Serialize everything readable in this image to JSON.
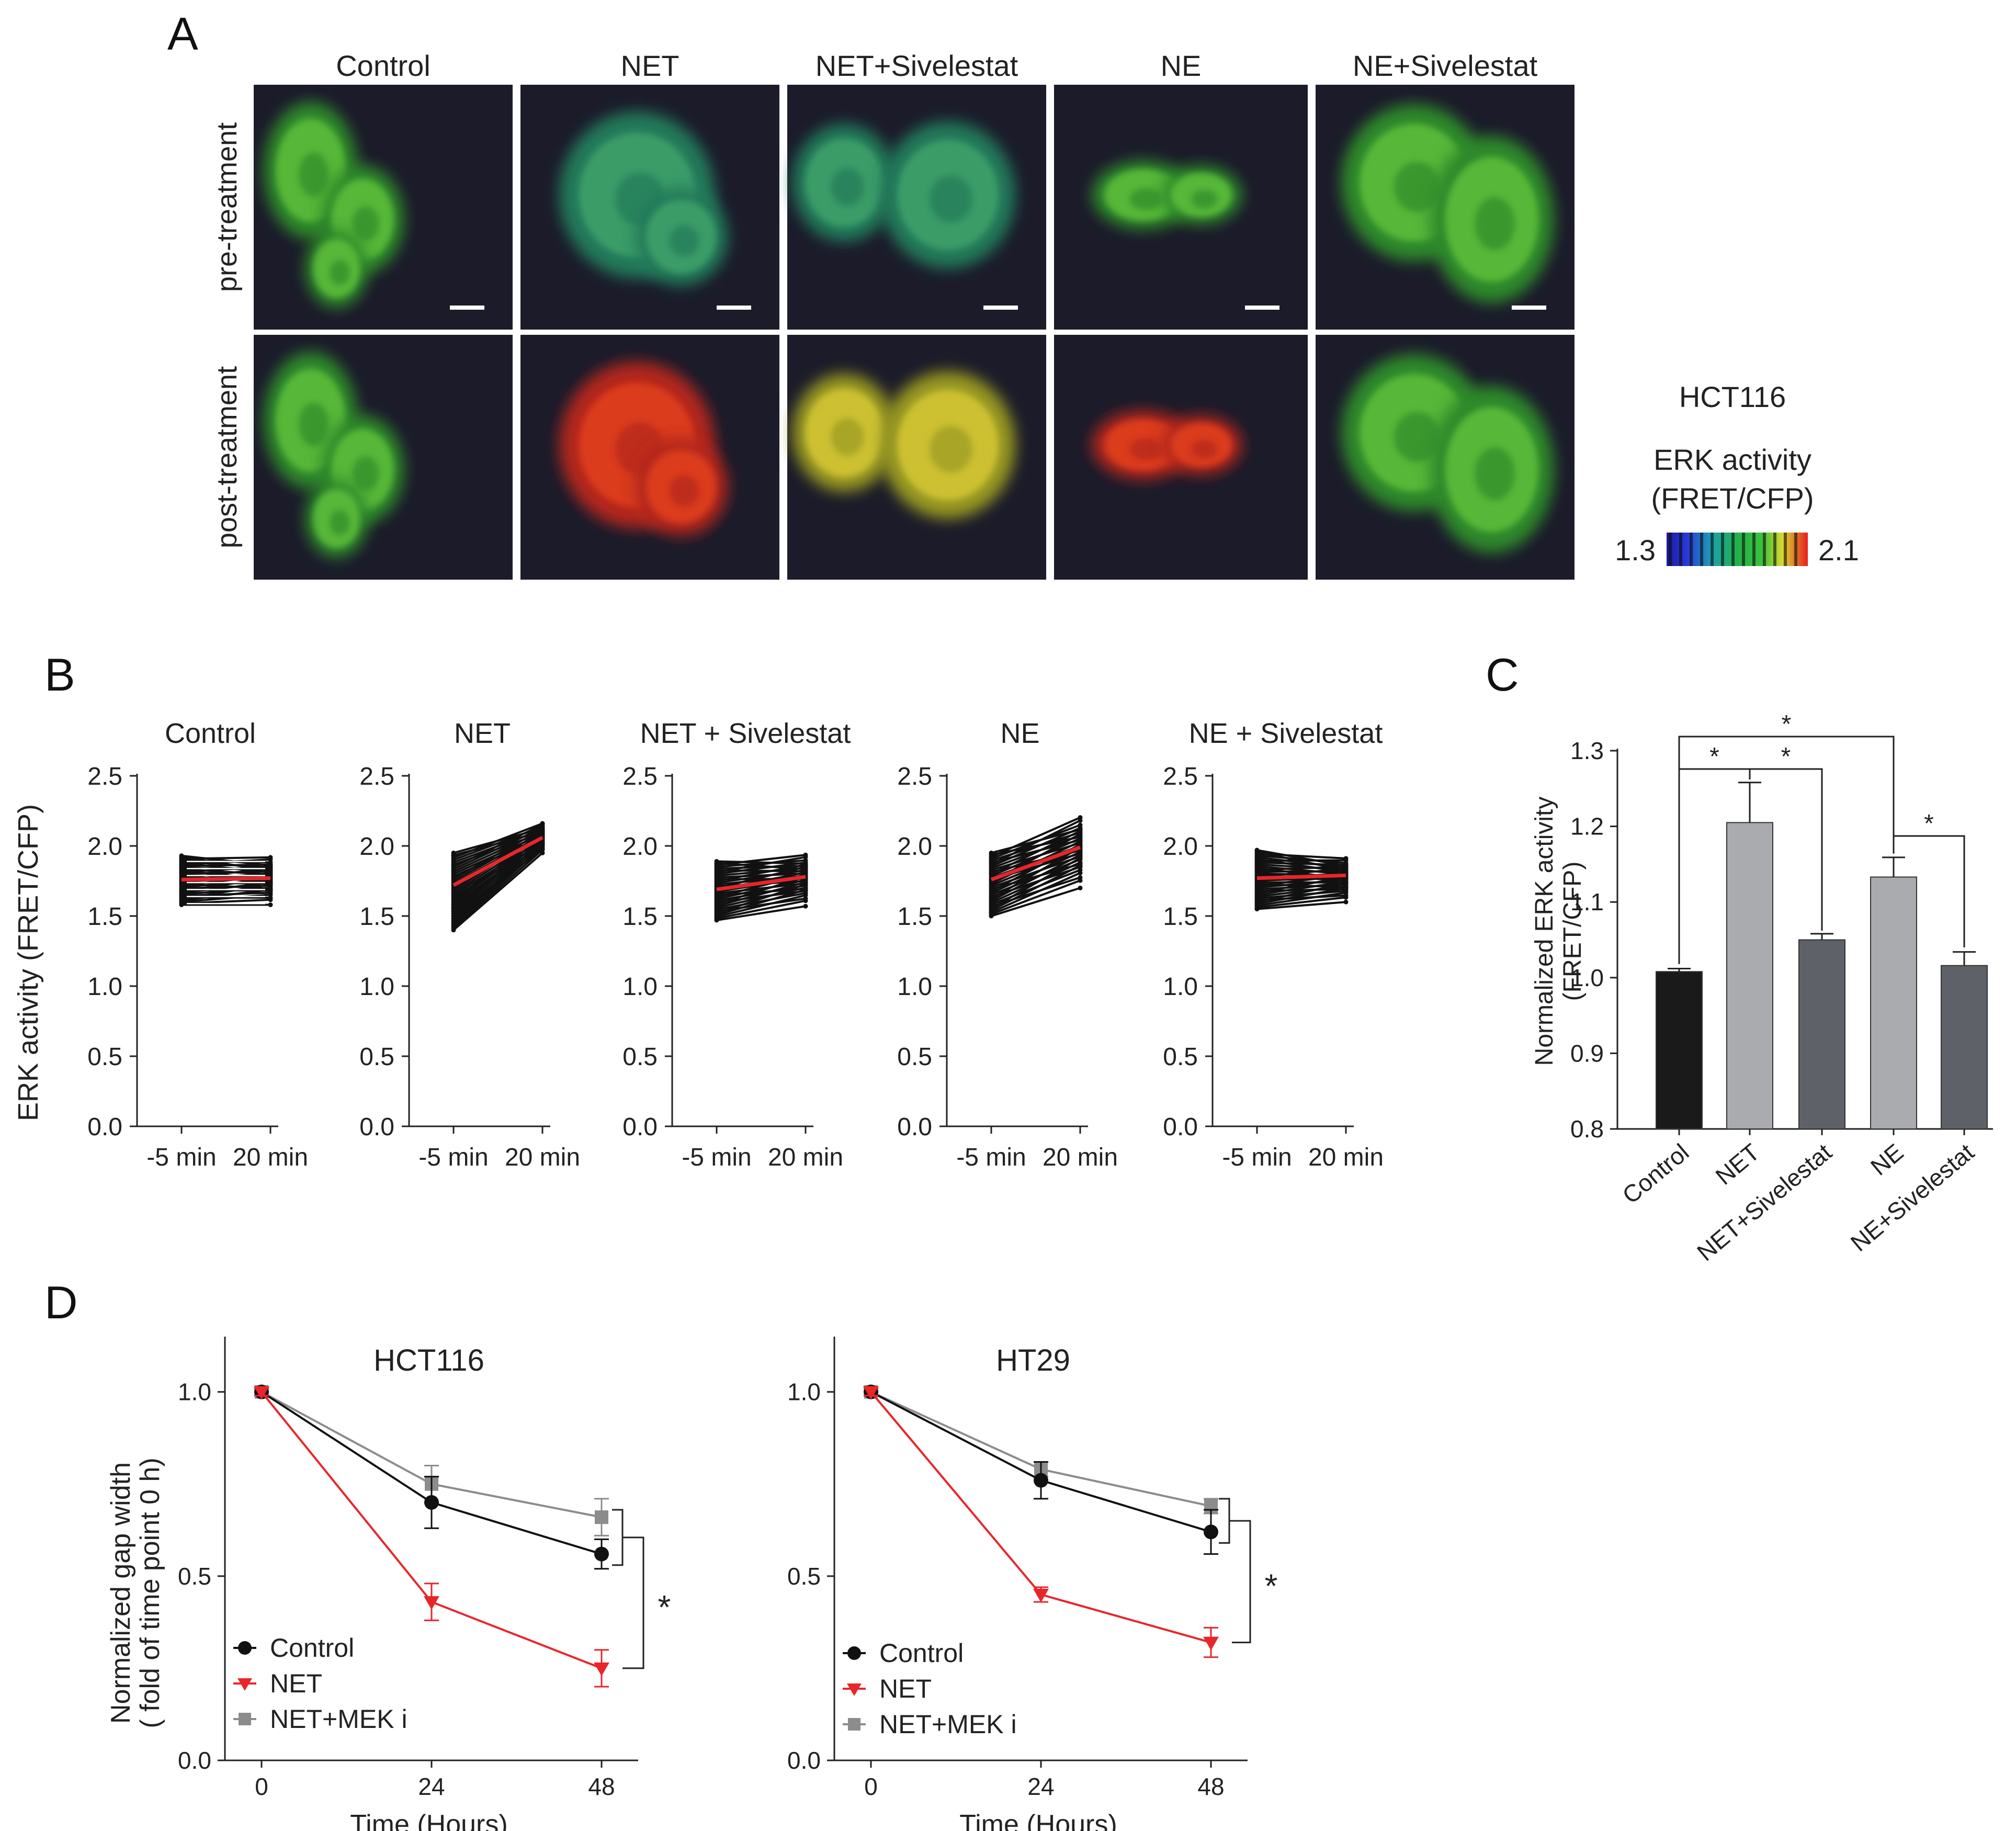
{
  "panel_letters": {
    "a": "A",
    "b": "B",
    "c": "C",
    "d": "D"
  },
  "colors": {
    "black": "#111111",
    "red": "#e8262a",
    "grey": "#8c8c8c",
    "bar_dark": "#1a1a1a",
    "bar_light": "#a9abae",
    "bar_mid": "#5e6268",
    "cell_bg": "#1b1b2a"
  },
  "panel_a": {
    "conditions": [
      "Control",
      "NET",
      "NET+Sivelestat",
      "NE",
      "NE+Sivelestat"
    ],
    "row_labels": [
      "pre-treatment",
      "post-treatment"
    ],
    "cell_line": "HCT116",
    "colorbar_title_1": "ERK activity",
    "colorbar_title_2": "(FRET/CFP)",
    "colorbar_min": "1.3",
    "colorbar_max": "2.1",
    "pre_tone": [
      "green",
      "teal",
      "teal",
      "green",
      "green"
    ],
    "post_tone": [
      "green",
      "red",
      "yellow",
      "red",
      "green"
    ]
  },
  "chart_data": [
    {
      "id": "B",
      "type": "line",
      "ylabel": "ERK activity (FRET/CFP)",
      "ylim": [
        0,
        2.5
      ],
      "yticks": [
        "0.0",
        "0.5",
        "1.0",
        "1.5",
        "2.0",
        "2.5"
      ],
      "categories": [
        "-5 min",
        "20 min"
      ],
      "panels": [
        {
          "title": "Control",
          "mean": [
            1.76,
            1.77
          ],
          "start_range": [
            1.58,
            1.93
          ],
          "end_range": [
            1.58,
            1.95
          ]
        },
        {
          "title": "NET",
          "mean": [
            1.72,
            2.06
          ],
          "start_range": [
            1.4,
            1.95
          ],
          "end_range": [
            1.95,
            2.18
          ]
        },
        {
          "title": "NET + Sivelestat",
          "mean": [
            1.69,
            1.78
          ],
          "start_range": [
            1.47,
            1.89
          ],
          "end_range": [
            1.57,
            1.97
          ]
        },
        {
          "title": "NE",
          "mean": [
            1.76,
            1.99
          ],
          "start_range": [
            1.5,
            1.95
          ],
          "end_range": [
            1.7,
            2.25
          ]
        },
        {
          "title": "NE + Sivelestat",
          "mean": [
            1.77,
            1.79
          ],
          "start_range": [
            1.55,
            1.97
          ],
          "end_range": [
            1.6,
            1.94
          ]
        }
      ]
    },
    {
      "id": "C",
      "type": "bar",
      "ylabel_1": "Normalized ERK activity",
      "ylabel_2": "(FRET/CFP)",
      "ylim": [
        0.8,
        1.3
      ],
      "yticks": [
        "0.8",
        "0.9",
        "1.0",
        "1.1",
        "1.2",
        "1.3"
      ],
      "categories": [
        "Control",
        "NET",
        "NET+Sivelestat",
        "NE",
        "NE+Sivelestat"
      ],
      "values": [
        1.008,
        1.205,
        1.05,
        1.133,
        1.016
      ],
      "errors": [
        0.004,
        0.053,
        0.008,
        0.026,
        0.018
      ],
      "significance_label": "*",
      "significance_pairs": [
        [
          0,
          3
        ],
        [
          0,
          1
        ],
        [
          1,
          2
        ],
        [
          3,
          4
        ]
      ]
    },
    {
      "id": "D",
      "type": "line",
      "ylabel_1": "Normalized gap width",
      "ylabel_2": "( fold of time point 0 h)",
      "xlabel": "Time (Hours)",
      "x": [
        0,
        24,
        48
      ],
      "xticks": [
        "0",
        "24",
        "48"
      ],
      "ylim": [
        0,
        1.15
      ],
      "yticks": [
        "0.0",
        "0.5",
        "1.0"
      ],
      "significance_label": "*",
      "panels": [
        {
          "title": "HCT116",
          "series": [
            {
              "name": "Control",
              "values": [
                1.0,
                0.7,
                0.56
              ],
              "errors": [
                0.01,
                0.07,
                0.04
              ]
            },
            {
              "name": "NET",
              "values": [
                1.0,
                0.43,
                0.25
              ],
              "errors": [
                0.01,
                0.05,
                0.05
              ]
            },
            {
              "name": "NET+MEK i",
              "values": [
                1.0,
                0.75,
                0.66
              ],
              "errors": [
                0.01,
                0.05,
                0.05
              ]
            }
          ]
        },
        {
          "title": "HT29",
          "series": [
            {
              "name": "Control",
              "values": [
                1.0,
                0.76,
                0.62
              ],
              "errors": [
                0.01,
                0.05,
                0.06
              ]
            },
            {
              "name": "NET",
              "values": [
                1.0,
                0.45,
                0.32
              ],
              "errors": [
                0.01,
                0.02,
                0.04
              ]
            },
            {
              "name": "NET+MEK i",
              "values": [
                1.0,
                0.79,
                0.69
              ],
              "errors": [
                0.01,
                0.02,
                0.02
              ]
            }
          ]
        }
      ]
    }
  ]
}
